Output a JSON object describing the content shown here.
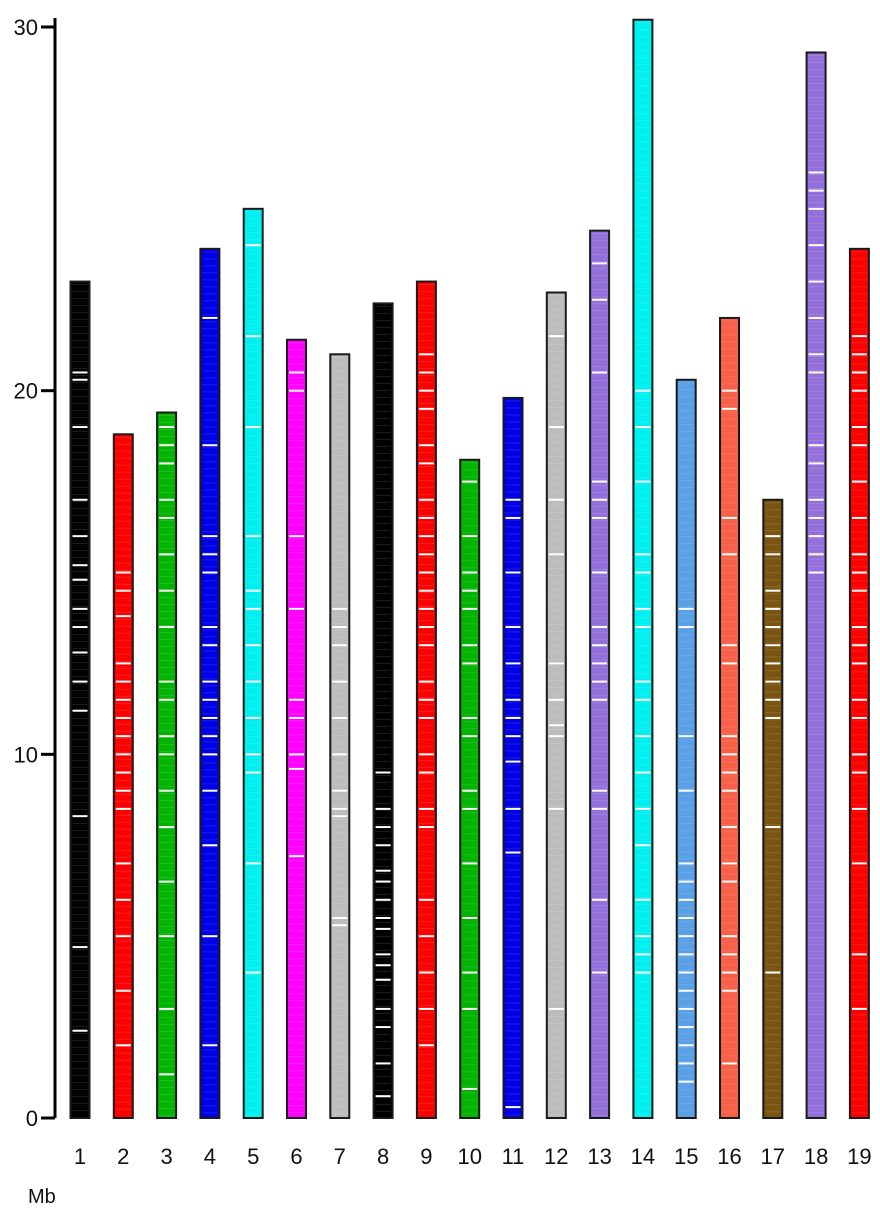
{
  "chart_data": {
    "type": "bar",
    "title": "",
    "xlabel": "",
    "ylabel": "",
    "unit_label": "Mb",
    "ylim": [
      0,
      30
    ],
    "yticks": [
      0,
      10,
      20,
      30
    ],
    "ytick_labels": [
      "0",
      "10",
      "20",
      "30"
    ],
    "categories": [
      "1",
      "2",
      "3",
      "4",
      "5",
      "6",
      "7",
      "8",
      "9",
      "10",
      "11",
      "12",
      "13",
      "14",
      "15",
      "16",
      "17",
      "18",
      "19"
    ],
    "values": [
      23.0,
      18.8,
      19.4,
      23.9,
      25.0,
      21.4,
      21.0,
      22.4,
      23.0,
      18.1,
      19.8,
      22.7,
      24.4,
      30.2,
      20.3,
      22.0,
      17.0,
      29.3,
      23.9
    ],
    "colors": [
      "#000000",
      "#ff0000",
      "#00b400",
      "#0000e6",
      "#00f0f0",
      "#ff00ff",
      "#bcbcbc",
      "#000000",
      "#ff0000",
      "#00b400",
      "#0000e6",
      "#bcbcbc",
      "#9370db",
      "#00f0f0",
      "#5aa0e6",
      "#f86048",
      "#7a5410",
      "#9370db",
      "#ff0000"
    ],
    "marker_positions_mb": [
      [
        20.5,
        20.3,
        19.0,
        17.0,
        16.0,
        15.2,
        14.8,
        14.0,
        13.5,
        12.8,
        12.0,
        11.2,
        8.3,
        4.7,
        2.4
      ],
      [
        15.0,
        14.5,
        13.8,
        12.5,
        12.0,
        11.5,
        11.0,
        10.5,
        10.0,
        9.5,
        9.0,
        8.5,
        7.0,
        6.0,
        5.0,
        3.5,
        2.0
      ],
      [
        19.0,
        18.5,
        18.0,
        17.0,
        16.5,
        15.5,
        14.5,
        13.5,
        12.0,
        11.5,
        10.5,
        10.0,
        9.0,
        8.0,
        6.5,
        5.0,
        3.0,
        1.2
      ],
      [
        22.0,
        18.5,
        16.0,
        15.5,
        15.0,
        13.5,
        13.0,
        12.0,
        11.5,
        11.0,
        10.5,
        10.0,
        9.0,
        7.5,
        5.0,
        2.0
      ],
      [
        24.0,
        21.5,
        19.0,
        16.0,
        14.5,
        14.0,
        13.0,
        12.0,
        11.0,
        10.0,
        9.5,
        7.0,
        4.0
      ],
      [
        20.5,
        20.0,
        16.0,
        14.0,
        11.5,
        11.0,
        10.0,
        9.6,
        7.2
      ],
      [
        14.0,
        13.5,
        13.0,
        12.0,
        11.0,
        10.0,
        9.0,
        8.5,
        8.3,
        5.5,
        5.3
      ],
      [
        9.5,
        8.5,
        8.0,
        7.5,
        6.8,
        6.5,
        6.0,
        5.5,
        5.2,
        4.5,
        4.2,
        3.8,
        3.0,
        2.5,
        1.5,
        0.6
      ],
      [
        21.0,
        20.5,
        20.0,
        19.5,
        18.5,
        18.0,
        17.0,
        16.5,
        16.0,
        15.5,
        15.0,
        14.5,
        14.0,
        13.5,
        13.0,
        12.0,
        11.5,
        11.0,
        10.0,
        9.5,
        8.5,
        8.0,
        6.0,
        5.0,
        4.0,
        3.0,
        2.0
      ],
      [
        17.5,
        16.0,
        15.0,
        14.5,
        14.0,
        13.0,
        12.5,
        11.0,
        10.5,
        9.0,
        8.5,
        7.0,
        5.5,
        4.0,
        3.0,
        0.8
      ],
      [
        17.0,
        16.5,
        15.0,
        13.5,
        12.5,
        11.5,
        11.0,
        10.5,
        9.8,
        8.5,
        7.3,
        0.3
      ],
      [
        21.5,
        19.0,
        17.0,
        15.5,
        12.5,
        11.5,
        10.8,
        10.5,
        8.5,
        3.0
      ],
      [
        23.5,
        22.5,
        20.5,
        17.5,
        17.0,
        16.5,
        15.0,
        13.5,
        13.0,
        12.5,
        12.0,
        11.5,
        9.0,
        8.5,
        6.0,
        4.0
      ],
      [
        20.0,
        19.0,
        17.5,
        15.5,
        15.0,
        14.0,
        13.5,
        12.0,
        11.5,
        10.5,
        9.5,
        8.5,
        7.5,
        6.0,
        5.0,
        4.5,
        4.0
      ],
      [
        14.0,
        13.5,
        10.5,
        9.0,
        7.0,
        6.5,
        6.0,
        5.5,
        5.0,
        4.5,
        4.0,
        3.5,
        3.0,
        2.5,
        2.0,
        1.5,
        1.0
      ],
      [
        20.0,
        19.5,
        16.5,
        15.5,
        13.0,
        12.5,
        10.5,
        10.0,
        9.5,
        9.0,
        8.0,
        7.0,
        6.5,
        5.0,
        4.5,
        4.0,
        3.5,
        1.5
      ],
      [
        16.0,
        15.5,
        14.5,
        14.0,
        13.5,
        13.0,
        12.5,
        12.0,
        11.5,
        11.0,
        8.0,
        4.0
      ],
      [
        26.0,
        25.5,
        25.0,
        24.0,
        23.0,
        22.0,
        21.0,
        20.5,
        18.5,
        18.0,
        17.0,
        16.5,
        16.0,
        15.5,
        15.0
      ],
      [
        21.5,
        21.0,
        20.5,
        20.0,
        19.0,
        18.5,
        17.5,
        16.5,
        15.5,
        15.0,
        14.5,
        13.5,
        13.0,
        12.5,
        11.5,
        11.0,
        10.0,
        9.5,
        8.5,
        7.0,
        4.5,
        3.0
      ]
    ]
  }
}
